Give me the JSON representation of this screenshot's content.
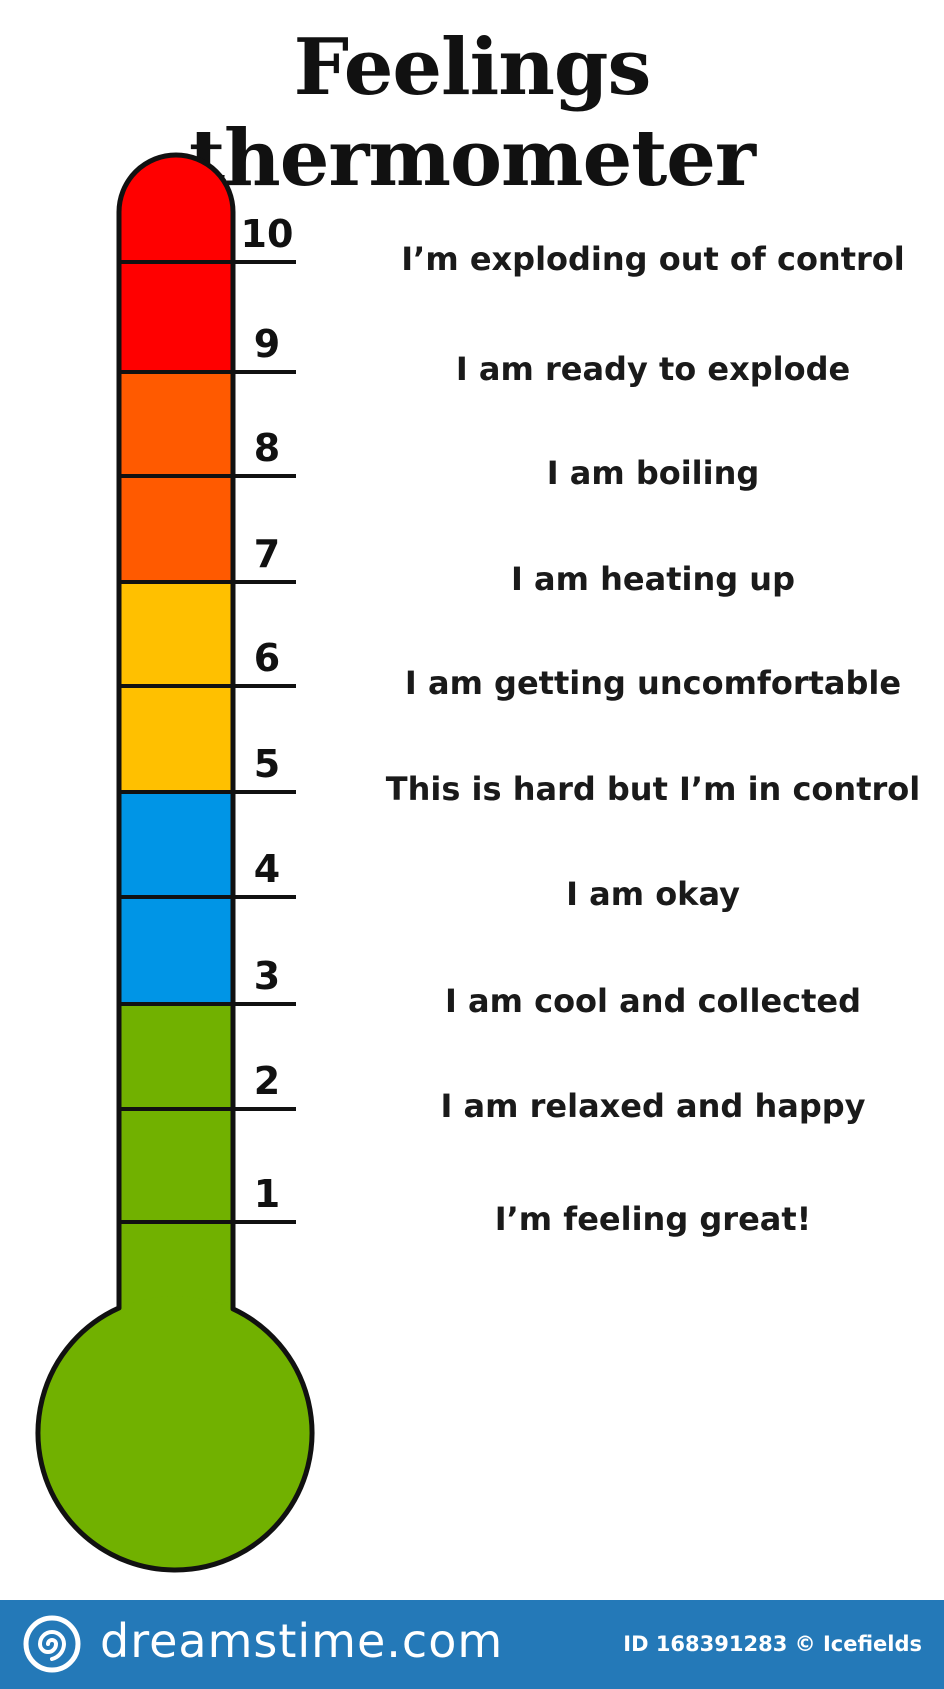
{
  "title": "Feelings thermometer",
  "levels": [
    {
      "number": "10",
      "text": "I’m exploding out of control"
    },
    {
      "number": "9",
      "text": "I am ready to explode"
    },
    {
      "number": "8",
      "text": "I am boiling"
    },
    {
      "number": "7",
      "text": "I am heating up"
    },
    {
      "number": "6",
      "text": "I am getting uncomfortable"
    },
    {
      "number": "5",
      "text": "This is hard but I’m in control"
    },
    {
      "number": "4",
      "text": "I am okay"
    },
    {
      "number": "3",
      "text": "I am cool and collected"
    },
    {
      "number": "2",
      "text": "I am relaxed and happy"
    },
    {
      "number": "1",
      "text": "I’m feeling great!"
    }
  ],
  "colors": {
    "red": "#ff0000",
    "orange": "#ff5a00",
    "yellow": "#ffc000",
    "blue": "#0095e6",
    "green": "#71b100",
    "outline": "#111111",
    "footer": "#2479b8"
  },
  "footer": {
    "brand": "dreamstime.com",
    "credit": "ID 168391283 © Icefields",
    "logo_icon": "spiral-logo-icon"
  }
}
